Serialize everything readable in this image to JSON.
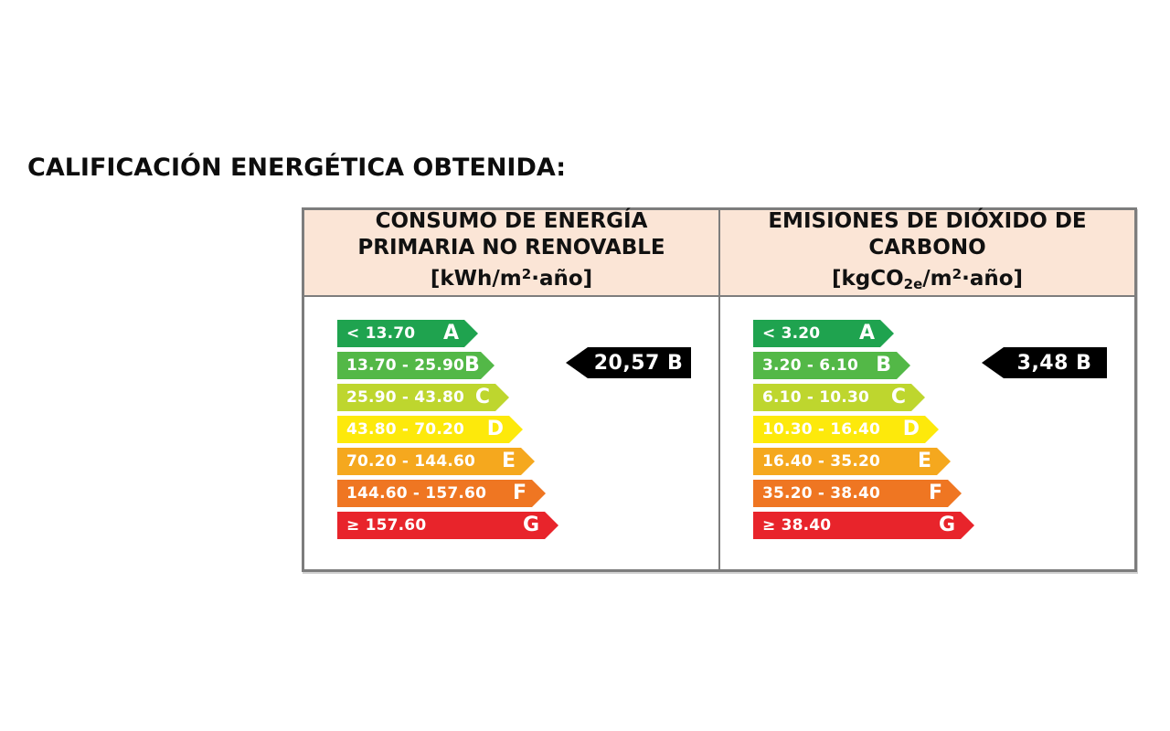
{
  "title": "CALIFICACIÓN ENERGÉTICA OBTENIDA:",
  "colors": {
    "header_bg": "#fbe5d6",
    "table_border": "#7d7d7d",
    "result_arrow_bg": "#000000",
    "result_arrow_text": "#ffffff",
    "grade_a": "#1fa34f",
    "grade_b": "#53b847",
    "grade_c": "#bed62e",
    "grade_d": "#fde90b",
    "grade_e": "#f5a81e",
    "grade_f": "#ef7622",
    "grade_g": "#e8242b"
  },
  "energy": {
    "header": {
      "line1": "CONSUMO DE ENERGÍA",
      "line2": "PRIMARIA NO RENOVABLE",
      "unit": {
        "p1": "[kWh/m",
        "sub": "",
        "p2": "",
        "sup": "2",
        "p3": "·año]"
      }
    },
    "rows": [
      {
        "range": "< 13.70",
        "letter": "A",
        "color": "#1fa34f"
      },
      {
        "range": "13.70 - 25.90",
        "letter": "B",
        "color": "#53b847"
      },
      {
        "range": "25.90 - 43.80",
        "letter": "C",
        "color": "#bed62e"
      },
      {
        "range": "43.80 - 70.20",
        "letter": "D",
        "color": "#fde90b"
      },
      {
        "range": "70.20 - 144.60",
        "letter": "E",
        "color": "#f5a81e"
      },
      {
        "range": "144.60 - 157.60",
        "letter": "F",
        "color": "#ef7622"
      },
      {
        "range": "≥ 157.60",
        "letter": "G",
        "color": "#e8242b"
      }
    ],
    "result": "20,57 B"
  },
  "emissions": {
    "header": {
      "line1": "EMISIONES DE DIÓXIDO DE",
      "line2": "CARBONO",
      "unit": {
        "p1": "[kgCO",
        "sub": "2e",
        "p2": "/m",
        "sup": "2",
        "p3": "·año]"
      }
    },
    "rows": [
      {
        "range": "< 3.20",
        "letter": "A",
        "color": "#1fa34f"
      },
      {
        "range": "3.20 - 6.10",
        "letter": "B",
        "color": "#53b847"
      },
      {
        "range": "6.10 - 10.30",
        "letter": "C",
        "color": "#bed62e"
      },
      {
        "range": "10.30 - 16.40",
        "letter": "D",
        "color": "#fde90b"
      },
      {
        "range": "16.40 - 35.20",
        "letter": "E",
        "color": "#f5a81e"
      },
      {
        "range": "35.20 - 38.40",
        "letter": "F",
        "color": "#ef7622"
      },
      {
        "range": "≥ 38.40",
        "letter": "G",
        "color": "#e8242b"
      }
    ],
    "result": "3,48 B"
  }
}
